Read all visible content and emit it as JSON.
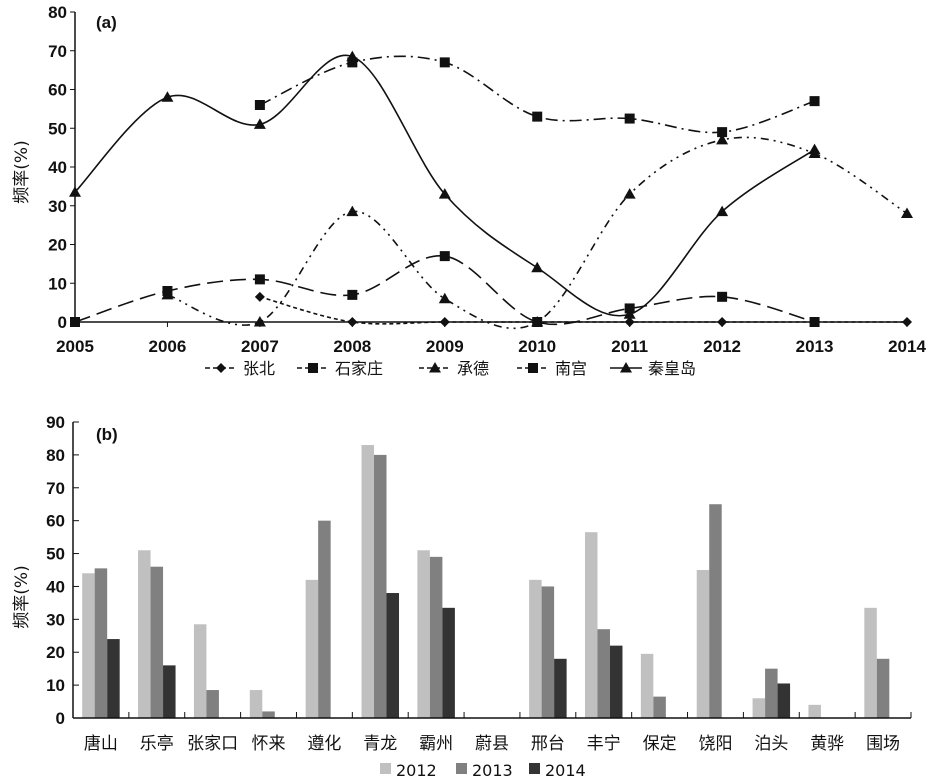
{
  "chart_data": [
    {
      "type": "line",
      "panel_label": "(a)",
      "ylabel": "频率(%)",
      "xlabel": "",
      "x": [
        2005,
        2006,
        2007,
        2008,
        2009,
        2010,
        2011,
        2012,
        2013,
        2014
      ],
      "x_tick_labels": [
        "2005",
        "2006",
        "2007",
        "2008",
        "2009",
        "2010",
        "2011",
        "2012",
        "2013",
        "2014"
      ],
      "ylim": [
        0,
        80
      ],
      "y_ticks": [
        0,
        10,
        20,
        30,
        40,
        50,
        60,
        70,
        80
      ],
      "grid": false,
      "legend_position": "bottom",
      "series": [
        {
          "name": "张北",
          "marker": "diamond",
          "line": "short-dash",
          "values": [
            null,
            null,
            6.5,
            0,
            0,
            0,
            0,
            0,
            0,
            0
          ]
        },
        {
          "name": "石家庄",
          "marker": "square",
          "line": "long-dash",
          "values": [
            0,
            8,
            11,
            7,
            17,
            0,
            3.5,
            6.5,
            0,
            null
          ]
        },
        {
          "name": "承德",
          "marker": "triangle",
          "line": "dash-dot-dot",
          "values": [
            null,
            7,
            0,
            28.5,
            6,
            0,
            33,
            47,
            43.5,
            28
          ]
        },
        {
          "name": "南宫",
          "marker": "square",
          "line": "dash-dot",
          "values": [
            null,
            null,
            56,
            67,
            67,
            53,
            52.5,
            49,
            57,
            null
          ]
        },
        {
          "name": "秦皇岛",
          "marker": "triangle",
          "line": "solid",
          "values": [
            33.5,
            58,
            51,
            68.5,
            33,
            14,
            2,
            28.5,
            44.5,
            null
          ]
        }
      ]
    },
    {
      "type": "bar",
      "panel_label": "(b)",
      "ylabel": "频率(%)",
      "xlabel": "",
      "categories": [
        "唐山",
        "乐亭",
        "张家口",
        "怀来",
        "遵化",
        "青龙",
        "霸州",
        "蔚县",
        "邢台",
        "丰宁",
        "保定",
        "饶阳",
        "泊头",
        "黄骅",
        "围场"
      ],
      "ylim": [
        0,
        90
      ],
      "y_ticks": [
        0,
        10,
        20,
        30,
        40,
        50,
        60,
        70,
        80,
        90
      ],
      "grid": false,
      "legend_position": "bottom",
      "series": [
        {
          "name": "2012",
          "color": "#c0c0c0",
          "values": [
            44,
            51,
            28.5,
            8.5,
            42,
            83,
            51,
            null,
            42,
            56.5,
            19.5,
            45,
            6,
            4,
            33.5
          ]
        },
        {
          "name": "2013",
          "color": "#808080",
          "values": [
            45.5,
            46,
            8.5,
            2,
            60,
            80,
            49,
            null,
            40,
            27,
            6.5,
            65,
            15,
            null,
            18
          ]
        },
        {
          "name": "2014",
          "color": "#333333",
          "values": [
            24,
            16,
            null,
            null,
            null,
            38,
            33.5,
            null,
            18,
            22,
            null,
            null,
            10.5,
            null,
            null
          ]
        }
      ]
    }
  ]
}
